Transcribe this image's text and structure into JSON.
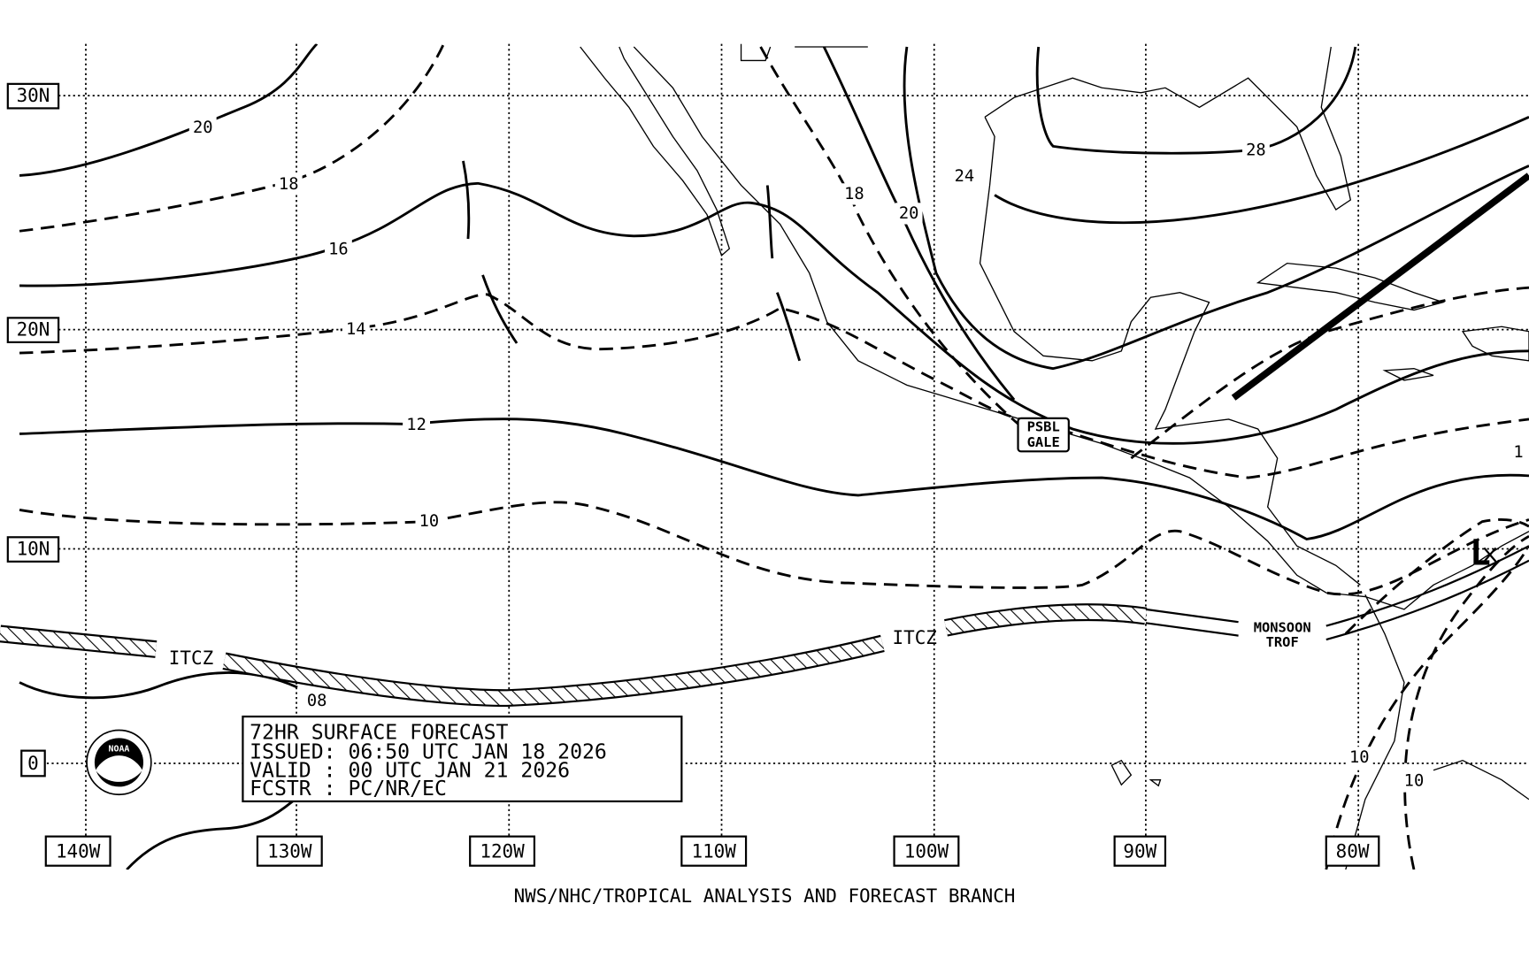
{
  "map": {
    "lat_labels": [
      "30N",
      "20N",
      "10N",
      "0"
    ],
    "lon_labels": [
      "140W",
      "130W",
      "120W",
      "110W",
      "100W",
      "90W",
      "80W"
    ],
    "isobar_labels": [
      "20",
      "18",
      "16",
      "14",
      "12",
      "10",
      "08",
      "18",
      "20",
      "24",
      "28",
      "10",
      "10",
      "1"
    ],
    "features": {
      "itcz": [
        "ITCZ",
        "ITCZ"
      ],
      "monsoon_trough": [
        "MONSOON",
        "TROF"
      ],
      "gale": [
        "PSBL",
        "GALE"
      ],
      "low": "L"
    }
  },
  "info_box": {
    "lines": [
      "72HR SURFACE FORECAST",
      "ISSUED: 06:50 UTC JAN 18 2026",
      "VALID : 00 UTC JAN 21 2026",
      "FCSTR : PC/NR/EC"
    ]
  },
  "footer": "NWS/NHC/TROPICAL ANALYSIS AND FORECAST BRANCH"
}
